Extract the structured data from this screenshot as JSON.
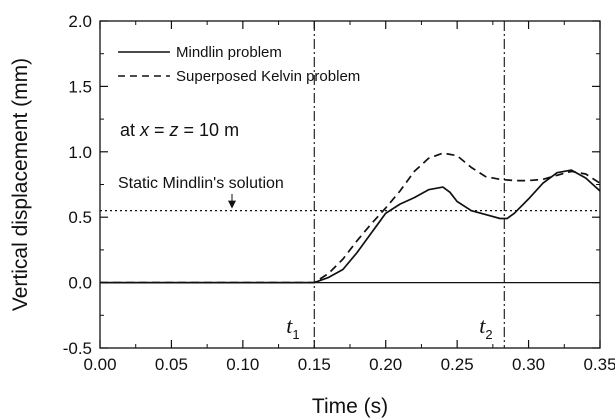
{
  "chart_data": {
    "type": "line",
    "xlabel": "Time (s)",
    "ylabel": "Vertical displacement (mm)",
    "xlim": [
      0.0,
      0.35
    ],
    "ylim": [
      -0.5,
      2.0
    ],
    "x_ticks": [
      "0.00",
      "0.05",
      "0.10",
      "0.15",
      "0.20",
      "0.25",
      "0.30",
      "0.35"
    ],
    "y_ticks": [
      "-0.5",
      "0.0",
      "0.5",
      "1.0",
      "1.5",
      "2.0"
    ],
    "grid": false,
    "legend_position": "top-left",
    "series": [
      {
        "name": "Mindlin problem",
        "style": "solid",
        "x": [
          0.0,
          0.14,
          0.15,
          0.16,
          0.17,
          0.18,
          0.19,
          0.2,
          0.21,
          0.22,
          0.23,
          0.24,
          0.245,
          0.25,
          0.26,
          0.27,
          0.28,
          0.285,
          0.29,
          0.3,
          0.31,
          0.32,
          0.33,
          0.34,
          0.35
        ],
        "y": [
          0.0,
          0.0,
          0.0,
          0.04,
          0.1,
          0.23,
          0.38,
          0.53,
          0.6,
          0.65,
          0.71,
          0.73,
          0.69,
          0.62,
          0.55,
          0.52,
          0.49,
          0.49,
          0.53,
          0.64,
          0.76,
          0.84,
          0.86,
          0.8,
          0.7
        ]
      },
      {
        "name": "Superposed Kelvin problem",
        "style": "dashed",
        "x": [
          0.0,
          0.14,
          0.15,
          0.16,
          0.17,
          0.18,
          0.19,
          0.2,
          0.21,
          0.22,
          0.23,
          0.24,
          0.25,
          0.26,
          0.27,
          0.28,
          0.29,
          0.3,
          0.31,
          0.32,
          0.33,
          0.34,
          0.35
        ],
        "y": [
          0.0,
          0.0,
          0.0,
          0.07,
          0.18,
          0.32,
          0.45,
          0.57,
          0.7,
          0.85,
          0.95,
          0.99,
          0.97,
          0.88,
          0.81,
          0.79,
          0.78,
          0.78,
          0.79,
          0.82,
          0.85,
          0.83,
          0.76
        ]
      }
    ],
    "reference_lines": [
      {
        "orientation": "horizontal",
        "value": 0.55,
        "style": "dotted",
        "label": "Static Mindlin's solution"
      },
      {
        "orientation": "vertical",
        "value": 0.15,
        "style": "dash-dot",
        "label": "t",
        "subscript": "1"
      },
      {
        "orientation": "vertical",
        "value": 0.283,
        "style": "dash-dot",
        "label": "t",
        "subscript": "2"
      }
    ],
    "annotations": {
      "condition": "at x = z = 10 m"
    }
  }
}
